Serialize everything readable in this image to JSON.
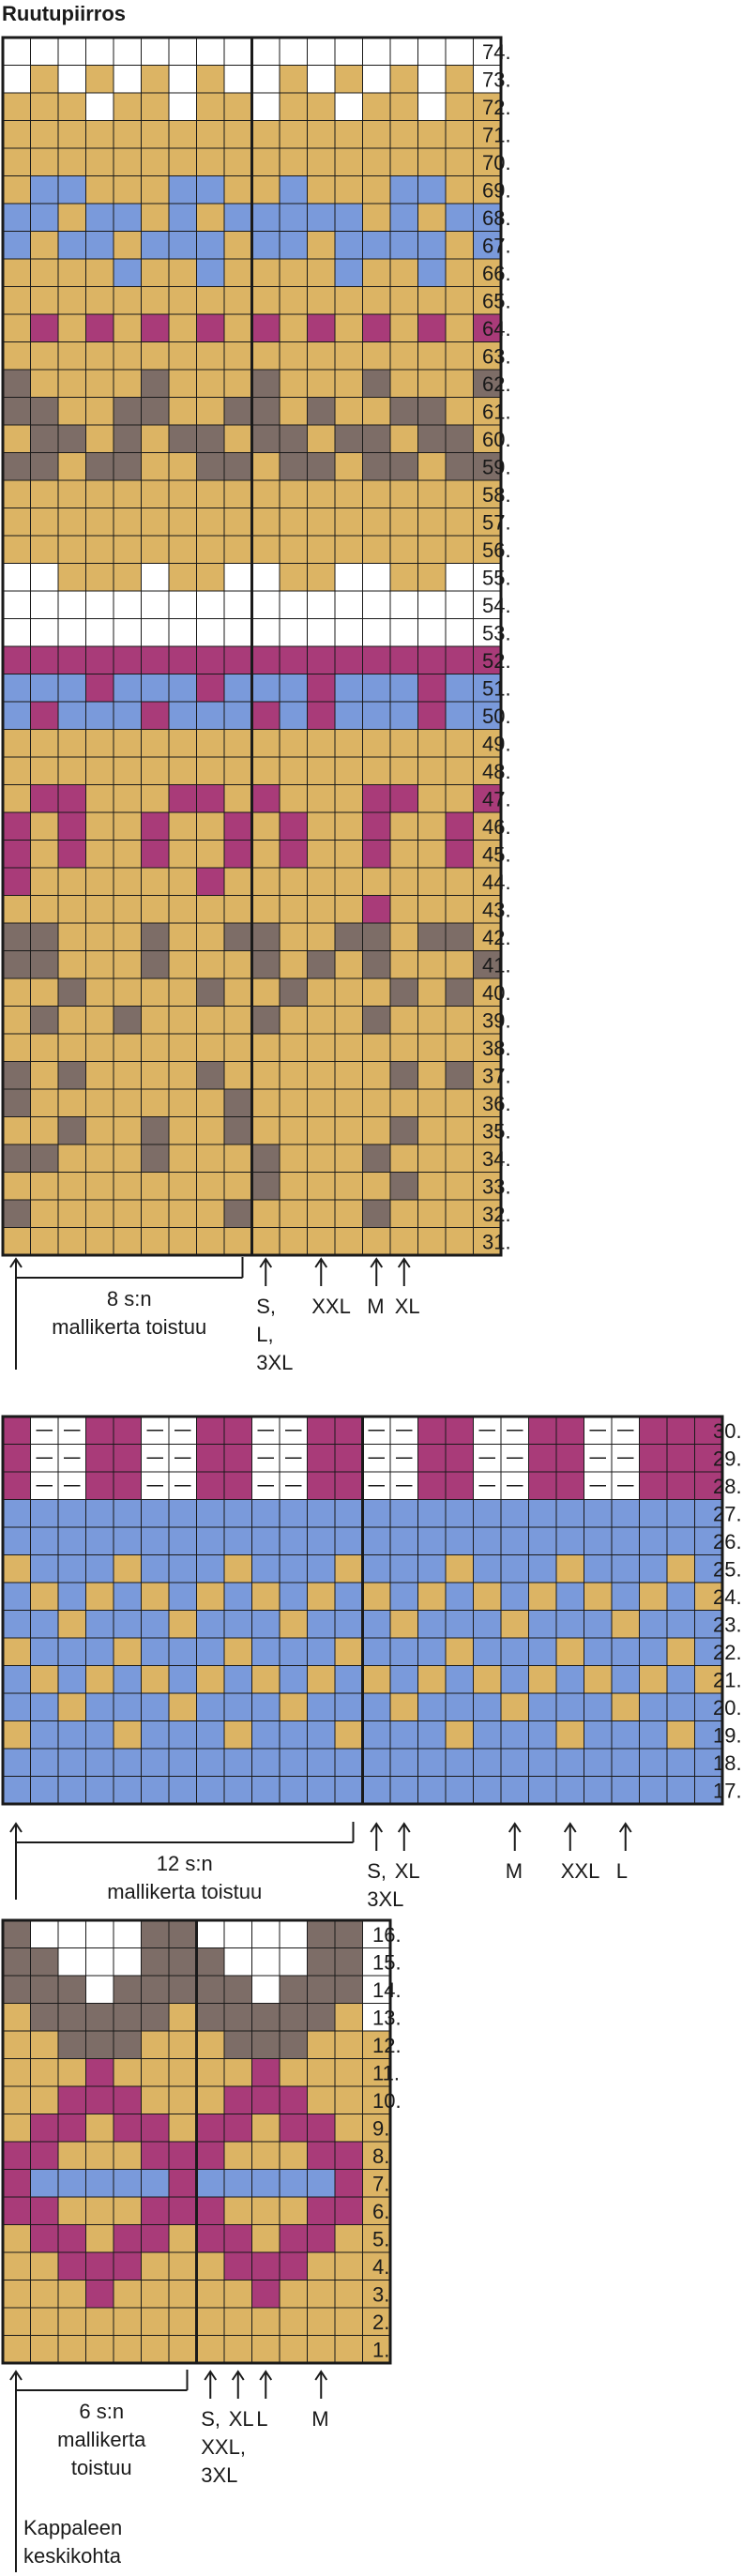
{
  "title": "Ruutupiirros",
  "colors": {
    "Y": "#dcb464",
    "W": "#ffffff",
    "B": "#7a9adb",
    "P": "#a93b79",
    "G": "#7d6d67"
  },
  "sections": [
    {
      "name": "upper-chart",
      "rows_top_to_bottom": [
        "WWWWWWWWWWWWWWWWWW",
        "WYWYWYWYWWYWYWYWYW",
        "YYYWYYWYYWYYWYYWYY",
        "YYYYYYYYYYYYYYYYYY",
        "YYYYYYYYYYYYYYYYYY",
        "YBBYYYBBYYBYYYBBYY",
        "BBYBBYBYBBBBBYBYBB",
        "BYBBYBBBYBBYBBBBYB",
        "YYYYBYYBYYYYBYYBYY",
        "YYYYYYYYYYYYYYYYYY",
        "YPYPYPYPYPYPYPYPYP",
        "YYYYYYYYYYYYYYYYYY",
        "GYYYYGYYYGYYYGYYYG",
        "GGYYGGYYGGYGYYGGYY",
        "YGGYGYGGYGGYGGYGGY",
        "GGYGGYYGGYGGYGGYGG",
        "YYYYYYYYYYYYYYYYYY",
        "YYYYYYYYYYYYYYYYYY",
        "YYYYYYYYYYYYYYYYYY",
        "WWYYYWYYWWYYWWYYWW",
        "WWWWWWWWWWWWWWWWWW",
        "WWWWWWWWWWWWWWWWWW",
        "PPPPPPPPPPPPPPPPPP",
        "BBBPBBBPBBBPBBBPBB",
        "BPBBBPBBBPBPBBBPBB",
        "YYYYYYYYYYYYYYYYYY",
        "YYYYYYYYYYYYYYYYYY",
        "YPPYYYPPYPYYYPPYYP",
        "PYPYYPYYPYPYYPYYPY",
        "PYPYYPYYPYPYYPYYPY",
        "PYYYYYYPYYYYYYYYYY",
        "YYYYYYYYYYYYYPYYYY",
        "GGYYYGYYGGYYGGYGGY",
        "GGYYYGYYYGYGYGYYYG",
        "YYGYYYYGYYGYYYGYGY",
        "YGYYGYYYYGYYYGYYYY",
        "YYYYYYYYYYYYYYYYYY",
        "GYGYYYYGYYYYYYGYGY",
        "GYYYYYYYGYYYYYYYYY",
        "YYGYYGYYGYYYYYGYYY",
        "GGYYYGYYYGYYYGYYYY",
        "YYYYYYYYYGYYYYGYYY",
        "GYYYYYYYGYYYYGYYYY",
        "YYYYYYYYYYYYYYYYYY"
      ],
      "separator_after_col": 9,
      "row_labels_top_to_bottom": [
        "74.",
        "73.",
        "72.",
        "71.",
        "70.",
        "69.",
        "68.",
        "67.",
        "66.",
        "65.",
        "64.",
        "63.",
        "62.",
        "61.",
        "60.",
        "59.",
        "58.",
        "57.",
        "56.",
        "55.",
        "54.",
        "53.",
        "52.",
        "51.",
        "50.",
        "49.",
        "48.",
        "47.",
        "46.",
        "45.",
        "44.",
        "43.",
        "42.",
        "41.",
        "40.",
        "39.",
        "38.",
        "37.",
        "36.",
        "35.",
        "34.",
        "33.",
        "32.",
        "31."
      ],
      "repeat_label": [
        "8 s:n",
        "mallikerta toistuu"
      ],
      "size_markers": [
        {
          "col": 9,
          "lines": [
            "S,",
            "L,",
            "3XL"
          ]
        },
        {
          "col": 11,
          "lines": [
            "XXL"
          ]
        },
        {
          "col": 13,
          "lines": [
            "M"
          ]
        },
        {
          "col": 14,
          "lines": [
            "XL"
          ]
        }
      ]
    },
    {
      "name": "middle-chart",
      "rows_top_to_bottom": [
        "PWWPPWWPPWWPPWWPPWWPPWWPPP",
        "PWWPPWWPPWWPPWWPPWWPPWWPPP",
        "PWWPPWWPPWWPPWWPPWWPPWWPPP",
        "BBBBBBBBBBBBBBBBBBBBBBBBBB",
        "BBBBBBBBBBBBBBBBBBBBBBBBBB",
        "YBBBYBBBYBBBYBBBYBBBYBBBYB",
        "BYBYBYBYBYBYBYBYBYBYBYBYBY",
        "BBYBBBYBBBYBBBYBBBYBBBYBBB",
        "YBBBYBBBYBBBYBBBYBBBYBBBYB",
        "BYBYBYBYBYBYBYBYBYBYBYBYBY",
        "BBYBBBYBBBYBBBYBBBYBBBYBBB",
        "YBBBYBBBYBBBYBBBYBBBYBBBYB",
        "BBBBBBBBBBBBBBBBBBBBBBBBBB",
        "BBBBBBBBBBBBBBBBBBBBBBBBBB"
      ],
      "dash_rows_top_to_bottom": [
        0,
        1,
        2
      ],
      "separator_after_col": 13,
      "row_labels_top_to_bottom": [
        "30.",
        "29.",
        "28.",
        "27.",
        "26.",
        "25.",
        "24.",
        "23.",
        "22.",
        "21.",
        "20.",
        "19.",
        "18.",
        "17."
      ],
      "repeat_label": [
        "12 s:n",
        "mallikerta toistuu"
      ],
      "size_markers": [
        {
          "col": 13,
          "lines": [
            "S,",
            "3XL"
          ]
        },
        {
          "col": 14,
          "lines": [
            "XL"
          ]
        },
        {
          "col": 18,
          "lines": [
            "M"
          ]
        },
        {
          "col": 20,
          "lines": [
            "XXL"
          ]
        },
        {
          "col": 22,
          "lines": [
            "L"
          ]
        }
      ]
    },
    {
      "name": "lower-chart",
      "rows_top_to_bottom": [
        "GWWWWGGWWWWGGW",
        "GGWWWGGGWWWGGW",
        "GGGWGGGGGWGGGW",
        "YGGGGGYGGGGGYW",
        "YYGGGYYYGGGYYY",
        "YYYPYYYYYPYYYY",
        "YYPPPYYYPPPYYY",
        "YPPYPPYPPYPPYY",
        "PPYYYPPPYYYPPY",
        "PBBBBBPBBBBBPY",
        "PPYYYPPPYYYPPY",
        "YPPYPPYPPYPPYY",
        "YYPPPYYYPPPYYY",
        "YYYPYYYYYPYYYY",
        "YYYYYYYYYYYYYY",
        "YYYYYYYYYYYYYY"
      ],
      "separator_after_col": 7,
      "row_labels_top_to_bottom": [
        "16.",
        "15.",
        "14.",
        "13.",
        "12.",
        "11.",
        "10.",
        "9.",
        "8.",
        "7.",
        "6.",
        "5.",
        "4.",
        "3.",
        "2.",
        "1."
      ],
      "repeat_label": [
        "6 s:n",
        "mallikerta",
        "toistuu"
      ],
      "size_markers": [
        {
          "col": 7,
          "lines": [
            "S,",
            "XXL,",
            "3XL"
          ]
        },
        {
          "col": 8,
          "lines": [
            "XL"
          ]
        },
        {
          "col": 9,
          "lines": [
            "L"
          ]
        },
        {
          "col": 11,
          "lines": [
            "M"
          ]
        }
      ],
      "center_label": [
        "Kappaleen",
        "keskikohta"
      ]
    }
  ]
}
